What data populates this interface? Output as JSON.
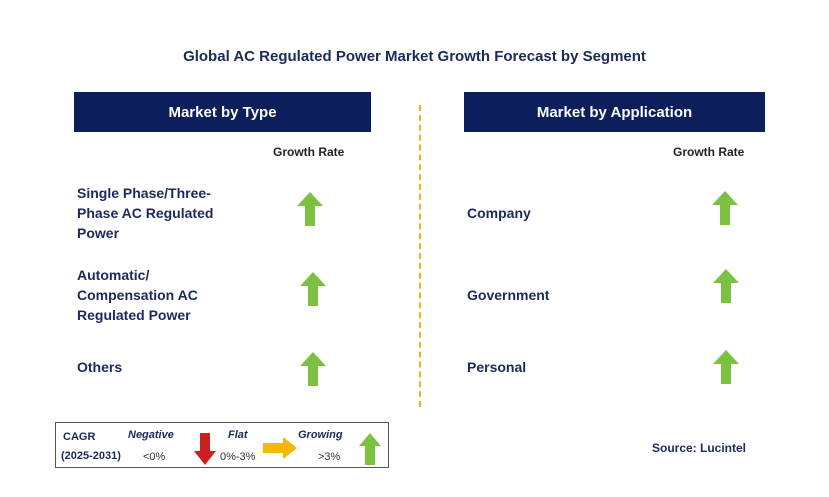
{
  "title": "Global AC Regulated Power Market Growth Forecast by Segment",
  "left_panel": {
    "header": "Market by Type",
    "growth_label": "Growth Rate",
    "rows": [
      {
        "label": "Single Phase/Three-Phase AC Regulated Power",
        "lines": [
          "Single Phase/Three-",
          "Phase AC Regulated",
          "Power"
        ],
        "trend": "growing"
      },
      {
        "label": "Automatic/Compensation AC Regulated Power",
        "lines": [
          "Automatic/",
          "Compensation AC",
          "Regulated Power"
        ],
        "trend": "growing"
      },
      {
        "label": "Others",
        "lines": [
          "Others"
        ],
        "trend": "growing"
      }
    ]
  },
  "right_panel": {
    "header": "Market by Application",
    "growth_label": "Growth Rate",
    "rows": [
      {
        "label": "Company",
        "trend": "growing"
      },
      {
        "label": "Government",
        "trend": "growing"
      },
      {
        "label": "Personal",
        "trend": "growing"
      }
    ]
  },
  "legend": {
    "cagr": "CAGR",
    "period": "(2025-2031)",
    "negative": {
      "label": "Negative",
      "value": "<0%",
      "color": "#cc1f1f",
      "icon": "down-arrow-icon"
    },
    "flat": {
      "label": "Flat",
      "value": "0%-3%",
      "color": "#f5b800",
      "icon": "right-arrow-icon"
    },
    "growing": {
      "label": "Growing",
      "value": ">3%",
      "color": "#7cc242",
      "icon": "up-arrow-icon"
    }
  },
  "source": "Source: Lucintel",
  "colors": {
    "header_bg": "#0c1f5c",
    "divider": "#f5b120",
    "up_arrow": "#7cc242"
  }
}
